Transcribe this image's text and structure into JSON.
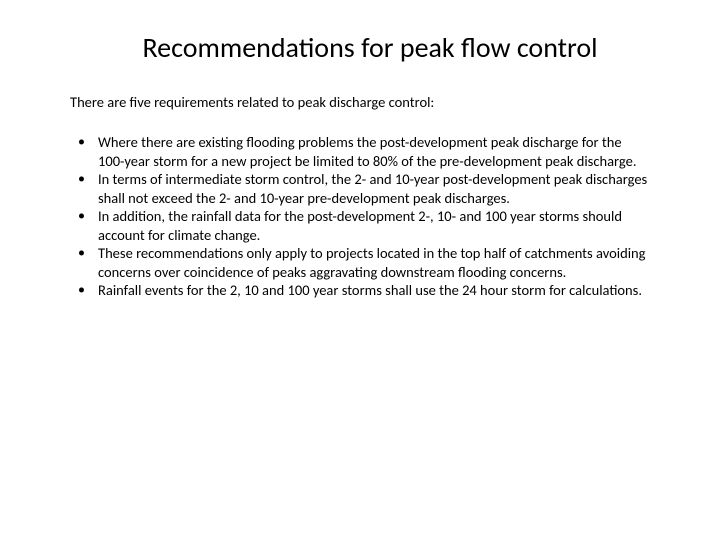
{
  "slide": {
    "title": "Recommendations for peak flow control",
    "intro": "There are five requirements related to peak discharge control:",
    "bullets": [
      "Where there are existing flooding problems the post-development peak discharge for the 100-year storm for a new project be limited to 80% of the pre-development peak discharge.",
      "In terms of intermediate storm control, the 2- and 10-year post-development peak discharges shall not exceed the 2- and 10-year pre-development peak discharges.",
      "In addition, the rainfall data for the post-development 2-, 10- and 100 year storms should account for climate change.",
      "These recommendations only apply to projects located in the top half of catchments avoiding concerns over coincidence of peaks aggravating downstream flooding concerns.",
      "Rainfall events for the 2, 10 and 100 year storms shall use the 24 hour storm for calculations."
    ]
  },
  "styling": {
    "background_color": "#ffffff",
    "text_color": "#000000",
    "title_fontsize": 28,
    "body_fontsize": 14.5,
    "font_family": "Calibri"
  }
}
